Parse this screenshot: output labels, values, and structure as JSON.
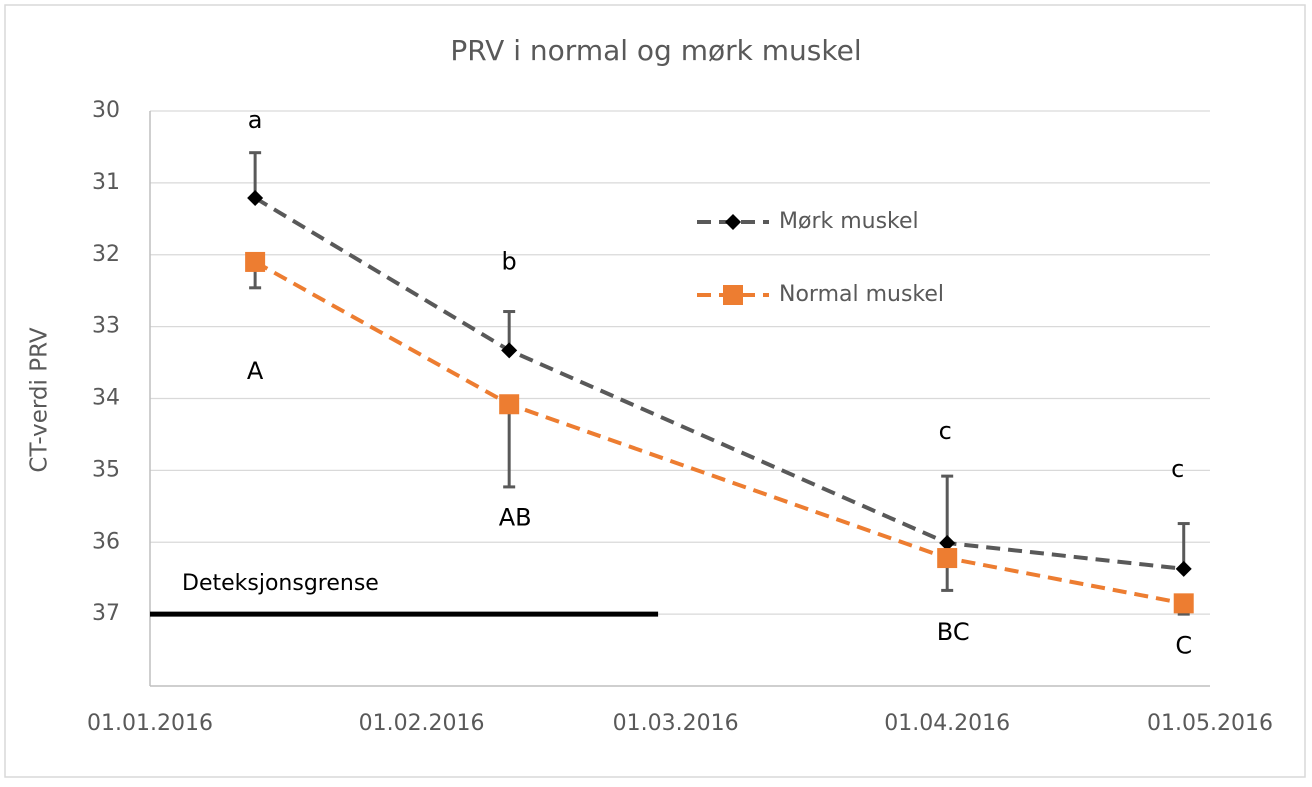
{
  "chart_data": {
    "type": "line",
    "title": "PRV i normal og mørk muskel",
    "ylabel": "CT-verdi PRV",
    "x": [
      "13.01.2016",
      "11.02.2016",
      "01.04.2016",
      "28.04.2016"
    ],
    "xlim": [
      "01.01.2016",
      "01.05.2016"
    ],
    "xticks": [
      "01.01.2016",
      "01.02.2016",
      "01.03.2016",
      "01.04.2016",
      "01.05.2016"
    ],
    "ylim": [
      30,
      38
    ],
    "yticks": [
      30,
      31,
      32,
      33,
      34,
      35,
      36,
      37
    ],
    "y_inverted": true,
    "grid": true,
    "legend": "upper right",
    "series": [
      {
        "name": "Mørk muskel",
        "color": "#595959",
        "marker_color": "#000000",
        "marker": "diamond",
        "values": [
          31.21,
          33.33,
          36.01,
          36.37
        ],
        "error": [
          0.63,
          0.54,
          0.93,
          0.63
        ],
        "error_direction": "minus",
        "group_labels": [
          "a",
          "b",
          "c",
          "c"
        ]
      },
      {
        "name": "Normal muskel",
        "color": "#ed7d31",
        "marker_color": "#ed7d31",
        "marker": "square",
        "values": [
          32.1,
          34.08,
          36.22,
          36.85
        ],
        "error": [
          0.36,
          1.15,
          0.45,
          0.15
        ],
        "error_direction": "plus",
        "group_labels": [
          "A",
          "AB",
          "BC",
          "C"
        ]
      }
    ],
    "reference_line": {
      "label": "Deteksjonsgrense",
      "value": 37,
      "x": [
        "01.01.2016",
        "28.02.2016"
      ],
      "color": "#000000"
    }
  }
}
